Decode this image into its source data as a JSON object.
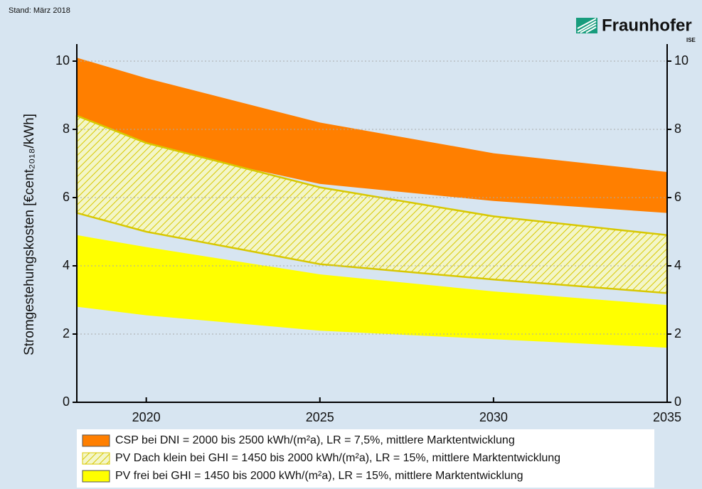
{
  "chart_data": {
    "type": "range-area",
    "note_top": "Stand: März 2018",
    "logo": "Fraunhofer",
    "logo_sub": "ISE",
    "ylabel": "Stromgestehungskosten [€cent₂₀₁₈/kWh]",
    "x": [
      2018,
      2020,
      2025,
      2030,
      2035
    ],
    "xlim": [
      2018,
      2035
    ],
    "xticks": [
      2020,
      2025,
      2030,
      2035
    ],
    "ylim": [
      0,
      10.5
    ],
    "yticks": [
      0,
      2,
      4,
      6,
      8,
      10
    ],
    "grid": true,
    "series": [
      {
        "name": "CSP bei DNI = 2000 bis 2500 kWh/(m²a), LR = 7,5%, mittlere Marktentwicklung",
        "color": "#ff7f00",
        "hatch": false,
        "upper": [
          10.1,
          9.5,
          8.2,
          7.3,
          6.75
        ],
        "lower": [
          7.95,
          7.5,
          6.4,
          5.9,
          5.55
        ]
      },
      {
        "name": "PV Dach klein bei GHI = 1450 bis 2000 kWh/(m²a), LR = 15%, mittlere Marktentwicklung",
        "color": "#d8c800",
        "hatch": true,
        "upper": [
          8.4,
          7.6,
          6.3,
          5.45,
          4.9
        ],
        "lower": [
          5.55,
          5.0,
          4.05,
          3.6,
          3.2
        ]
      },
      {
        "name": "PV frei bei GHI = 1450 bis 2000 kWh/(m²a), LR = 15%, mittlere Marktentwicklung",
        "color": "#ffff00",
        "hatch": false,
        "upper": [
          4.9,
          4.55,
          3.75,
          3.25,
          2.85
        ],
        "lower": [
          2.8,
          2.55,
          2.1,
          1.85,
          1.6
        ]
      }
    ]
  }
}
